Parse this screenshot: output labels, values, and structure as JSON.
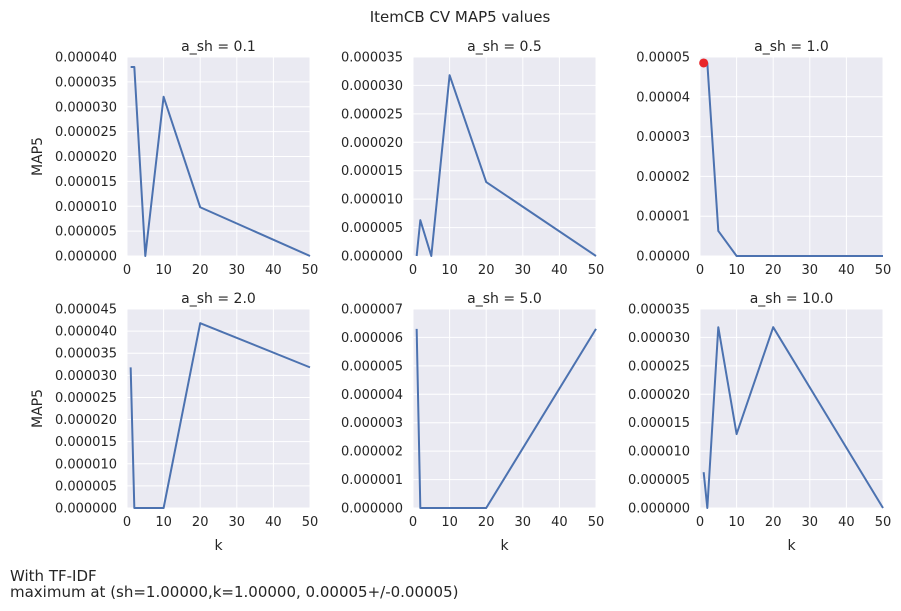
{
  "suptitle": "ItemCB CV MAP5 values",
  "note_line1": "With TF-IDF",
  "note_line2": "maximum at (sh=1.00000,k=1.00000, 0.00005+/-0.00005)",
  "colors": {
    "background": "#eaeaf2",
    "grid": "#ffffff",
    "line": "#4c72b0",
    "marker": "#e8262a",
    "text": "#262626"
  },
  "chart_data": [
    {
      "type": "line",
      "title": "a_sh = 0.1",
      "xlabel": "",
      "ylabel": "MAP5",
      "xlim": [
        0,
        50
      ],
      "ylim": [
        0,
        4e-05
      ],
      "xticks": [
        "0",
        "10",
        "20",
        "30",
        "40",
        "50"
      ],
      "yticks": [
        "0.000000",
        "0.000005",
        "0.000010",
        "0.000015",
        "0.000020",
        "0.000025",
        "0.000030",
        "0.000035",
        "0.000040"
      ],
      "x": [
        1,
        2,
        5,
        10,
        20,
        50
      ],
      "y": [
        3.8e-05,
        3.8e-05,
        0.0,
        3.2e-05,
        9.8e-06,
        0.0
      ],
      "grid": true
    },
    {
      "type": "line",
      "title": "a_sh = 0.5",
      "xlabel": "",
      "ylabel": "",
      "xlim": [
        0,
        50
      ],
      "ylim": [
        0,
        3.5e-05
      ],
      "xticks": [
        "0",
        "10",
        "20",
        "30",
        "40",
        "50"
      ],
      "yticks": [
        "0.000000",
        "0.000005",
        "0.000010",
        "0.000015",
        "0.000020",
        "0.000025",
        "0.000030",
        "0.000035"
      ],
      "x": [
        1,
        2,
        5,
        10,
        20,
        50
      ],
      "y": [
        0.0,
        6.3e-06,
        0.0,
        3.18e-05,
        1.3e-05,
        0.0
      ],
      "grid": true
    },
    {
      "type": "line",
      "title": "a_sh = 1.0",
      "xlabel": "",
      "ylabel": "",
      "xlim": [
        0,
        50
      ],
      "ylim": [
        0,
        5e-05
      ],
      "xticks": [
        "0",
        "10",
        "20",
        "30",
        "40",
        "50"
      ],
      "yticks": [
        "0.00000",
        "0.00001",
        "0.00002",
        "0.00003",
        "0.00004",
        "0.00005"
      ],
      "x": [
        1,
        2,
        5,
        10,
        20,
        50
      ],
      "y": [
        4.85e-05,
        4.85e-05,
        6.3e-06,
        0.0,
        0.0,
        0.0
      ],
      "highlight": {
        "x": 1,
        "y": 4.85e-05
      },
      "grid": true
    },
    {
      "type": "line",
      "title": "a_sh = 2.0",
      "xlabel": "k",
      "ylabel": "MAP5",
      "xlim": [
        0,
        50
      ],
      "ylim": [
        0,
        4.5e-05
      ],
      "xticks": [
        "0",
        "10",
        "20",
        "30",
        "40",
        "50"
      ],
      "yticks": [
        "0.000000",
        "0.000005",
        "0.000010",
        "0.000015",
        "0.000020",
        "0.000025",
        "0.000030",
        "0.000035",
        "0.000040",
        "0.000045"
      ],
      "x": [
        1,
        2,
        5,
        10,
        20,
        50
      ],
      "y": [
        3.18e-05,
        0.0,
        0.0,
        0.0,
        4.18e-05,
        3.18e-05
      ],
      "grid": true
    },
    {
      "type": "line",
      "title": "a_sh = 5.0",
      "xlabel": "k",
      "ylabel": "",
      "xlim": [
        0,
        50
      ],
      "ylim": [
        0,
        7e-06
      ],
      "xticks": [
        "0",
        "10",
        "20",
        "30",
        "40",
        "50"
      ],
      "yticks": [
        "0.000000",
        "0.000001",
        "0.000002",
        "0.000003",
        "0.000004",
        "0.000005",
        "0.000006",
        "0.000007"
      ],
      "x": [
        1,
        2,
        5,
        10,
        20,
        50
      ],
      "y": [
        6.3e-06,
        0.0,
        0.0,
        0.0,
        0.0,
        6.3e-06
      ],
      "grid": true
    },
    {
      "type": "line",
      "title": "a_sh = 10.0",
      "xlabel": "k",
      "ylabel": "",
      "xlim": [
        0,
        50
      ],
      "ylim": [
        0,
        3.5e-05
      ],
      "xticks": [
        "0",
        "10",
        "20",
        "30",
        "40",
        "50"
      ],
      "yticks": [
        "0.000000",
        "0.000005",
        "0.000010",
        "0.000015",
        "0.000020",
        "0.000025",
        "0.000030",
        "0.000035"
      ],
      "x": [
        1,
        2,
        5,
        10,
        20,
        50
      ],
      "y": [
        6.3e-06,
        0.0,
        3.18e-05,
        1.3e-05,
        3.18e-05,
        0.0
      ],
      "grid": true
    }
  ]
}
